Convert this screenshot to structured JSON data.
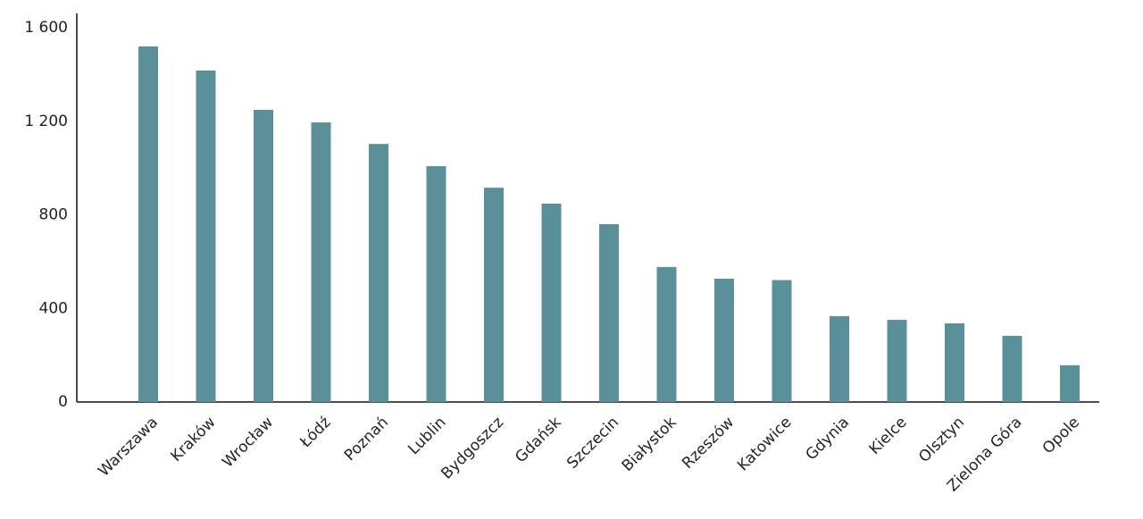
{
  "chart_data": {
    "type": "bar",
    "categories": [
      "Warszawa",
      "Kraków",
      "Wrocław",
      "Łódź",
      "Poznań",
      "Lublin",
      "Bydgoszcz",
      "Gdańsk",
      "Szczecin",
      "Białystok",
      "Rzeszów",
      "Katowice",
      "Gdynia",
      "Kielce",
      "Olsztyn",
      "Zielona Góra",
      "Opole"
    ],
    "values": [
      1520,
      1417,
      1249,
      1195,
      1103,
      1008,
      916,
      848,
      760,
      577,
      527,
      521,
      367,
      351,
      336,
      283,
      157
    ],
    "color": "#5a909a",
    "ylim": [
      0,
      1660
    ],
    "yticks": [
      0,
      400,
      800,
      {
        "value": 1200,
        "label": "1 200"
      },
      {
        "value": 1600,
        "label": "1 600"
      }
    ],
    "grid": false
  }
}
